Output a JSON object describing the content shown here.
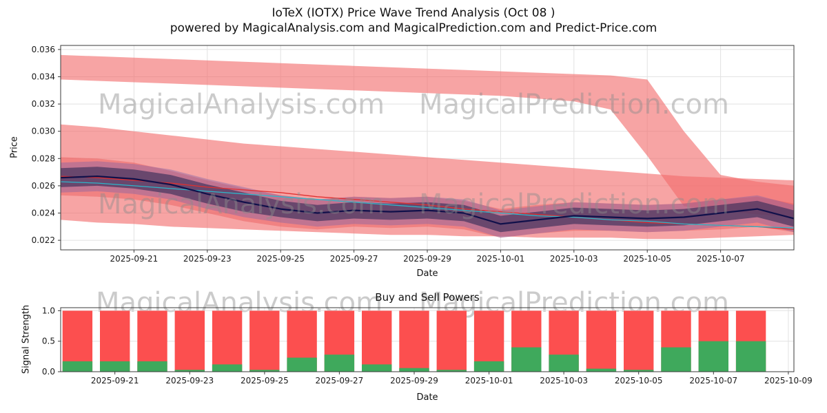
{
  "title": "IoTeX (IOTX) Price Wave Trend Analysis (Oct 08 )",
  "subtitle": "powered by MagicalAnalysis.com and MagicalPrediction.com and Predict-Price.com",
  "watermark_left": "MagicalAnalysis.com",
  "watermark_right": "MagicalPrediction.com",
  "colors": {
    "grid": "#e2e2e2",
    "spine": "#3a3a3a",
    "band_pink": "#f26c6c",
    "band_mid": "#e85858",
    "band_halo": "#7b5ea7",
    "band_core": "#2e2a55",
    "line_main": "#10104a",
    "line_cyan": "#2eb5c9",
    "line_red": "#e03030",
    "bar_red": "#fc4f4f",
    "bar_green": "#3fa95c",
    "watermark": "#c8c8c8"
  },
  "chart_data": [
    {
      "type": "area",
      "title": "IoTeX (IOTX) Price Wave Trend Analysis (Oct 08 )",
      "xlabel": "Date",
      "ylabel": "Price",
      "grid": true,
      "legend": "none",
      "ylim": [
        0.0213,
        0.0363
      ],
      "ytick_values": [
        0.022,
        0.024,
        0.026,
        0.028,
        0.03,
        0.032,
        0.034,
        0.036
      ],
      "ytick_labels": [
        "0.022",
        "0.024",
        "0.026",
        "0.028",
        "0.030",
        "0.032",
        "0.034",
        "0.036"
      ],
      "dates": [
        "2025-09-19",
        "2025-09-20",
        "2025-09-21",
        "2025-09-22",
        "2025-09-23",
        "2025-09-24",
        "2025-09-25",
        "2025-09-26",
        "2025-09-27",
        "2025-09-28",
        "2025-09-29",
        "2025-09-30",
        "2025-10-01",
        "2025-10-02",
        "2025-10-03",
        "2025-10-04",
        "2025-10-05",
        "2025-10-06",
        "2025-10-07",
        "2025-10-08",
        "2025-10-09"
      ],
      "x": [
        0,
        1,
        2,
        3,
        4,
        5,
        6,
        7,
        8,
        9,
        10,
        11,
        12,
        13,
        14,
        15,
        16,
        17,
        18,
        19,
        20
      ],
      "xlim": [
        0,
        20
      ],
      "xtick_positions": [
        2,
        4,
        6,
        8,
        10,
        12,
        14,
        16,
        18
      ],
      "xtick_labels": [
        "2025-09-21",
        "2025-09-23",
        "2025-09-25",
        "2025-09-27",
        "2025-09-29",
        "2025-10-01",
        "2025-10-03",
        "2025-10-05",
        "2025-10-07"
      ],
      "bands": [
        {
          "name": "upper-forecast-band",
          "color": "#f26c6c",
          "opacity": 0.62,
          "upper": [
            0.0356,
            0.0355,
            0.0354,
            0.0353,
            0.0352,
            0.0351,
            0.035,
            0.0349,
            0.0348,
            0.0347,
            0.0346,
            0.0345,
            0.0344,
            0.0343,
            0.0342,
            0.0341,
            0.0338,
            0.03,
            0.0268,
            0.0263,
            0.026
          ],
          "lower": [
            0.0338,
            0.0337,
            0.0336,
            0.0335,
            0.0334,
            0.0333,
            0.0332,
            0.0331,
            0.033,
            0.0329,
            0.0328,
            0.0327,
            0.0326,
            0.0324,
            0.0322,
            0.0316,
            0.0282,
            0.0245,
            0.0242,
            0.0239,
            0.0237
          ]
        },
        {
          "name": "outer-envelope-band",
          "color": "#f26c6c",
          "opacity": 0.62,
          "upper": [
            0.0305,
            0.0303,
            0.03,
            0.0297,
            0.0294,
            0.0291,
            0.0289,
            0.0287,
            0.0285,
            0.0283,
            0.0281,
            0.0279,
            0.0277,
            0.0275,
            0.0273,
            0.0271,
            0.0269,
            0.0267,
            0.0266,
            0.0265,
            0.0264
          ],
          "lower": [
            0.0235,
            0.0233,
            0.0232,
            0.023,
            0.0229,
            0.0228,
            0.0227,
            0.0226,
            0.0225,
            0.0224,
            0.0224,
            0.0223,
            0.0223,
            0.0222,
            0.0222,
            0.0222,
            0.0221,
            0.0221,
            0.0222,
            0.0223,
            0.0224
          ]
        },
        {
          "name": "mid-envelope-band",
          "color": "#e85858",
          "opacity": 0.45,
          "upper": [
            0.0281,
            0.028,
            0.0277,
            0.0271,
            0.0264,
            0.0258,
            0.0253,
            0.025,
            0.0252,
            0.0251,
            0.0252,
            0.0249,
            0.0243,
            0.0246,
            0.0248,
            0.0247,
            0.0246,
            0.0247,
            0.025,
            0.0252,
            0.0247
          ],
          "lower": [
            0.0253,
            0.0252,
            0.025,
            0.0246,
            0.024,
            0.0234,
            0.023,
            0.0228,
            0.023,
            0.0229,
            0.023,
            0.0228,
            0.0222,
            0.0225,
            0.0227,
            0.0227,
            0.0226,
            0.0227,
            0.0228,
            0.023,
            0.0226
          ]
        },
        {
          "name": "violet-halo-band",
          "color": "#7b5ea7",
          "opacity": 0.4,
          "upper": [
            0.0277,
            0.0278,
            0.0276,
            0.0272,
            0.0265,
            0.0259,
            0.0253,
            0.025,
            0.0252,
            0.0251,
            0.0252,
            0.025,
            0.0242,
            0.0245,
            0.0248,
            0.0247,
            0.0246,
            0.0247,
            0.025,
            0.0253,
            0.0246
          ],
          "lower": [
            0.0255,
            0.0256,
            0.0254,
            0.025,
            0.0243,
            0.0237,
            0.0233,
            0.023,
            0.0232,
            0.0231,
            0.0232,
            0.023,
            0.0222,
            0.0225,
            0.0228,
            0.0227,
            0.0226,
            0.0227,
            0.023,
            0.0233,
            0.0226
          ]
        },
        {
          "name": "core-wave-band",
          "color": "#2e2a55",
          "opacity": 0.6,
          "upper": [
            0.0273,
            0.0274,
            0.0272,
            0.0268,
            0.0261,
            0.0255,
            0.0249,
            0.0246,
            0.0248,
            0.0247,
            0.0248,
            0.0246,
            0.0238,
            0.0241,
            0.0244,
            0.0243,
            0.0242,
            0.0243,
            0.0246,
            0.0249,
            0.0242
          ],
          "lower": [
            0.0259,
            0.026,
            0.0258,
            0.0254,
            0.0247,
            0.0241,
            0.0237,
            0.0234,
            0.0236,
            0.0235,
            0.0236,
            0.0234,
            0.0226,
            0.0229,
            0.0232,
            0.0231,
            0.023,
            0.0231,
            0.0234,
            0.0237,
            0.023
          ]
        }
      ],
      "lines": [
        {
          "name": "trend-line-red",
          "color": "#e03030",
          "width": 1.3,
          "values": [
            0.0267,
            0.0266,
            0.0264,
            0.0262,
            0.0259,
            0.0257,
            0.0255,
            0.0252,
            0.025,
            0.0248,
            0.0246,
            0.0243,
            0.0241,
            0.0239,
            0.0237,
            0.0235,
            0.0233,
            0.0232,
            0.0231,
            0.023,
            0.0228
          ]
        },
        {
          "name": "trend-line-cyan",
          "color": "#2eb5c9",
          "width": 1.3,
          "values": [
            0.0263,
            0.0262,
            0.026,
            0.0258,
            0.0256,
            0.0254,
            0.0252,
            0.025,
            0.0248,
            0.0246,
            0.0244,
            0.0242,
            0.024,
            0.0238,
            0.0237,
            0.0235,
            0.0234,
            0.0232,
            0.0231,
            0.023,
            0.0229
          ]
        },
        {
          "name": "price-main-line",
          "color": "#10104a",
          "width": 2.2,
          "values": [
            0.0266,
            0.0267,
            0.0265,
            0.0261,
            0.0254,
            0.0248,
            0.0243,
            0.024,
            0.0242,
            0.0241,
            0.0242,
            0.024,
            0.0232,
            0.0235,
            0.0238,
            0.0237,
            0.0236,
            0.0237,
            0.024,
            0.0243,
            0.0236
          ]
        }
      ]
    },
    {
      "type": "bar",
      "title": "Buy and Sell Powers",
      "xlabel": "Date",
      "ylabel": "Signal Strength",
      "grid": true,
      "legend": "none",
      "ylim": [
        0,
        1.05
      ],
      "ytick_values": [
        0.0,
        0.5,
        1.0
      ],
      "ytick_labels": [
        "0.0",
        "0.5",
        "1.0"
      ],
      "categories": [
        "2025-09-20",
        "2025-09-21",
        "2025-09-22",
        "2025-09-23",
        "2025-09-24",
        "2025-09-25",
        "2025-09-26",
        "2025-09-27",
        "2025-09-28",
        "2025-09-29",
        "2025-09-30",
        "2025-10-01",
        "2025-10-02",
        "2025-10-03",
        "2025-10-04",
        "2025-10-05",
        "2025-10-06",
        "2025-10-07",
        "2025-10-08"
      ],
      "x": [
        1,
        2,
        3,
        4,
        5,
        6,
        7,
        8,
        9,
        10,
        11,
        12,
        13,
        14,
        15,
        16,
        17,
        18,
        19
      ],
      "xlim": [
        0.55,
        20.15
      ],
      "bar_width": 0.8,
      "xtick_positions": [
        2,
        4,
        6,
        8,
        10,
        12,
        14,
        16,
        18,
        20
      ],
      "xtick_labels": [
        "2025-09-21",
        "2025-09-23",
        "2025-09-25",
        "2025-09-27",
        "2025-09-29",
        "2025-10-01",
        "2025-10-03",
        "2025-10-05",
        "2025-10-07",
        "2025-10-09"
      ],
      "series": [
        {
          "name": "Sell Power",
          "color": "#fc4f4f",
          "values": [
            1.0,
            1.0,
            1.0,
            1.0,
            1.0,
            1.0,
            1.0,
            1.0,
            1.0,
            1.0,
            1.0,
            1.0,
            1.0,
            1.0,
            1.0,
            1.0,
            1.0,
            1.0,
            1.0
          ]
        },
        {
          "name": "Buy Power",
          "color": "#3fa95c",
          "values": [
            0.17,
            0.17,
            0.17,
            0.03,
            0.12,
            0.03,
            0.23,
            0.28,
            0.12,
            0.06,
            0.03,
            0.17,
            0.4,
            0.28,
            0.05,
            0.03,
            0.4,
            0.5,
            0.5
          ]
        }
      ]
    }
  ]
}
